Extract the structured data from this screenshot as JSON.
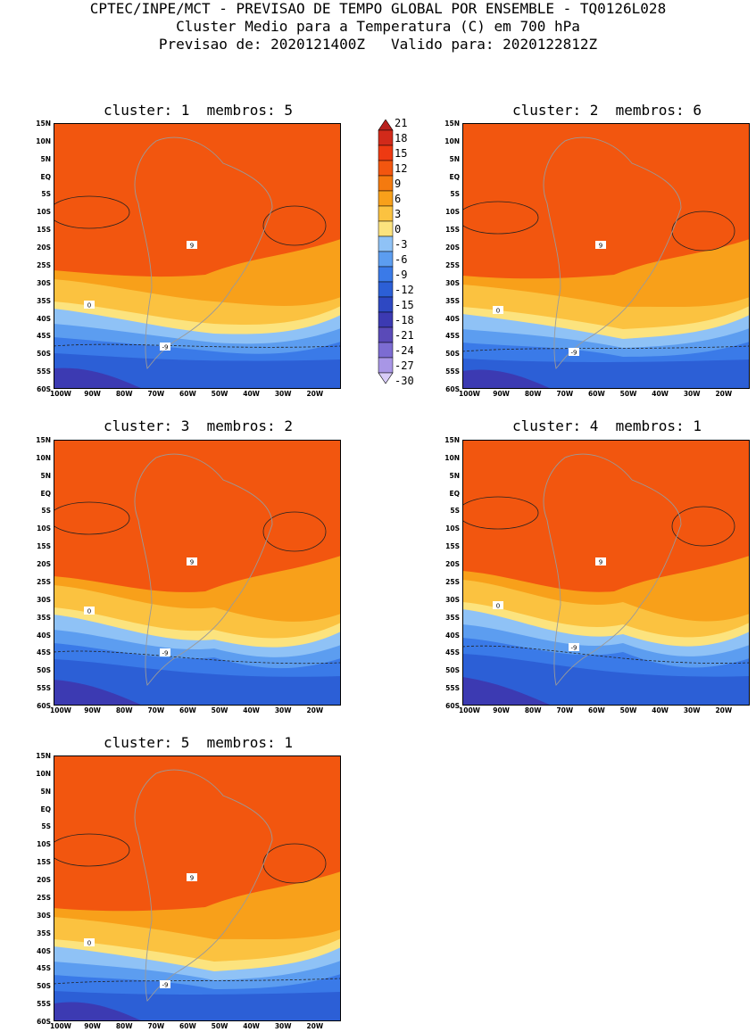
{
  "header": {
    "line1": "CPTEC/INPE/MCT - PREVISAO DE TEMPO GLOBAL POR ENSEMBLE - TQ0126L028",
    "line2": "Cluster Medio para a Temperatura (C) em 700 hPa",
    "line3": "Previsao de: 2020121400Z   Valido para: 2020122812Z"
  },
  "panels": [
    {
      "title": "cluster: 1  membros: 5"
    },
    {
      "title": "cluster: 2  membros: 6"
    },
    {
      "title": "cluster: 3  membros: 2"
    },
    {
      "title": "cluster: 4  membros: 1"
    },
    {
      "title": "cluster: 5  membros: 1"
    }
  ],
  "axes": {
    "lat_labels": [
      "15N",
      "10N",
      "5N",
      "EQ",
      "5S",
      "10S",
      "15S",
      "20S",
      "25S",
      "30S",
      "35S",
      "40S",
      "45S",
      "50S",
      "55S",
      "60S"
    ],
    "lon_labels": [
      "100W",
      "90W",
      "80W",
      "70W",
      "60W",
      "50W",
      "40W",
      "30W",
      "20W"
    ]
  },
  "colorbar": {
    "labels": [
      "21",
      "18",
      "15",
      "12",
      "9",
      "6",
      "3",
      "0",
      "-3",
      "-6",
      "-9",
      "-12",
      "-15",
      "-18",
      "-21",
      "-24",
      "-27",
      "-30"
    ],
    "colors": [
      "#b8201c",
      "#d22a1a",
      "#ee3a12",
      "#f2560f",
      "#f47a0f",
      "#f8a01a",
      "#fbc240",
      "#fce37e",
      "#8fc2f6",
      "#5c9df0",
      "#3a7ae8",
      "#2c5fd6",
      "#2e48c2",
      "#3c3ab2",
      "#5a4ab8",
      "#7c6cd2",
      "#a896e6",
      "#d8ccf8"
    ]
  },
  "contour_labels": [
    "9",
    "0",
    "-9"
  ]
}
